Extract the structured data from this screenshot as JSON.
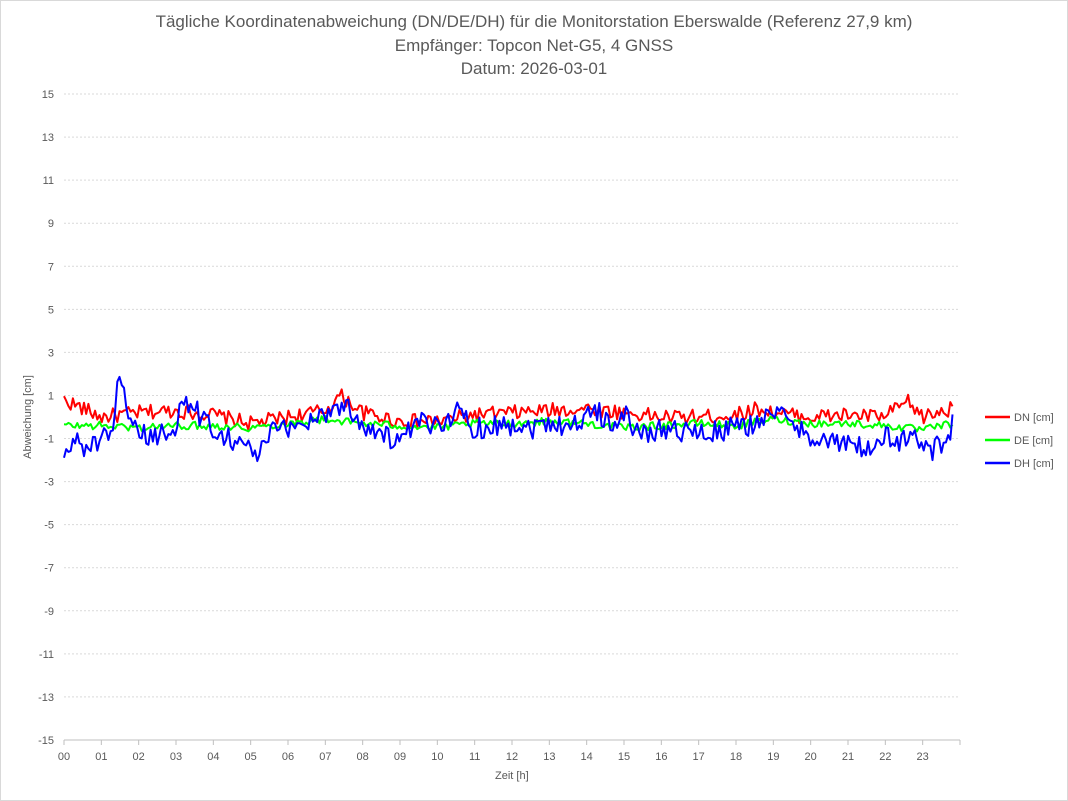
{
  "chart_data": {
    "type": "line",
    "title": "Tägliche Koordinatenabweichung (DN/DE/DH) für die Monitorstation Eberswalde (Referenz 27,9 km)",
    "subtitle": "Empfänger: Topcon Net-G5, 4 GNSS",
    "date_line": "Datum: 2026-03-01",
    "xlabel": "Zeit [h]",
    "ylabel": "Abweichung [cm]",
    "ylim": [
      -15,
      15
    ],
    "xlim": [
      0,
      24
    ],
    "yticks": [
      15,
      13,
      11,
      9,
      7,
      5,
      3,
      1,
      -1,
      -3,
      -5,
      -7,
      -9,
      -11,
      -13,
      -15
    ],
    "xtick_labels": [
      "00",
      "01",
      "02",
      "03",
      "04",
      "05",
      "06",
      "07",
      "08",
      "09",
      "10",
      "11",
      "12",
      "13",
      "14",
      "15",
      "16",
      "17",
      "18",
      "19",
      "20",
      "21",
      "22",
      "23"
    ],
    "grid": true,
    "legend_position": "right",
    "series": [
      {
        "name": "DN [cm]",
        "color": "#ff0000",
        "x": [
          0,
          1,
          2,
          3,
          4,
          5,
          6,
          7,
          7.4,
          7.8,
          8,
          9,
          10,
          11,
          12,
          13,
          14,
          15,
          16,
          17,
          18,
          18.6,
          19,
          20,
          21,
          22,
          22.3,
          22.6,
          23,
          23.8
        ],
        "values": [
          0.8,
          0,
          0.2,
          0.3,
          0.1,
          -0.3,
          0,
          0.3,
          1,
          0.5,
          0.2,
          -0.2,
          -0.2,
          0.1,
          0.2,
          0.3,
          0.4,
          0.2,
          0,
          0,
          0.1,
          0.4,
          0.2,
          0,
          0.1,
          0,
          0.4,
          0.7,
          0,
          0.4
        ]
      },
      {
        "name": "DE [cm]",
        "color": "#00ff00",
        "x": [
          0,
          1,
          2,
          3,
          4,
          5,
          6,
          7,
          8,
          9,
          10,
          11,
          12,
          13,
          14,
          15,
          16,
          17,
          18,
          19,
          20,
          21,
          22,
          23,
          23.8
        ],
        "values": [
          -0.4,
          -0.4,
          -0.5,
          -0.4,
          -0.4,
          -0.5,
          -0.3,
          -0.1,
          -0.3,
          -0.4,
          -0.5,
          -0.3,
          -0.3,
          -0.2,
          -0.3,
          -0.5,
          -0.4,
          -0.3,
          -0.4,
          -0.1,
          -0.3,
          -0.3,
          -0.4,
          -0.6,
          -0.3
        ]
      },
      {
        "name": "DH [cm]",
        "color": "#0000ff",
        "x": [
          0,
          0.3,
          0.6,
          1,
          1.3,
          1.5,
          1.7,
          2,
          2.5,
          3,
          3.2,
          4,
          5,
          5.2,
          5.5,
          6,
          6.5,
          7,
          7.5,
          8,
          8.5,
          9,
          9.5,
          10,
          10.5,
          11,
          11.5,
          12,
          12.5,
          13,
          13.5,
          14,
          14.2,
          14.5,
          15,
          15.5,
          16,
          16.5,
          17,
          17.5,
          18,
          18.5,
          19,
          19.5,
          20,
          20.5,
          21,
          21.5,
          22,
          22.5,
          23,
          23.3,
          23.8
        ],
        "values": [
          -2,
          -1,
          -1.5,
          -1,
          -1.2,
          2.6,
          -0.5,
          -0.8,
          -1,
          -0.3,
          0.8,
          -0.5,
          -1.5,
          -1.8,
          -0.8,
          -0.5,
          -0.2,
          0.2,
          0.6,
          -0.3,
          -0.8,
          -1.2,
          -0.3,
          -0.4,
          0.3,
          -0.5,
          -0.4,
          -0.3,
          -0.5,
          -0.2,
          -0.4,
          -0.1,
          0.6,
          -0.3,
          0.1,
          -0.9,
          -0.5,
          -0.6,
          -0.8,
          -0.7,
          -0.5,
          -0.3,
          0.3,
          -0.4,
          -0.8,
          -1.2,
          -1.3,
          -1.5,
          -1,
          -1.1,
          -1,
          -1.6,
          -0.4
        ]
      }
    ]
  }
}
